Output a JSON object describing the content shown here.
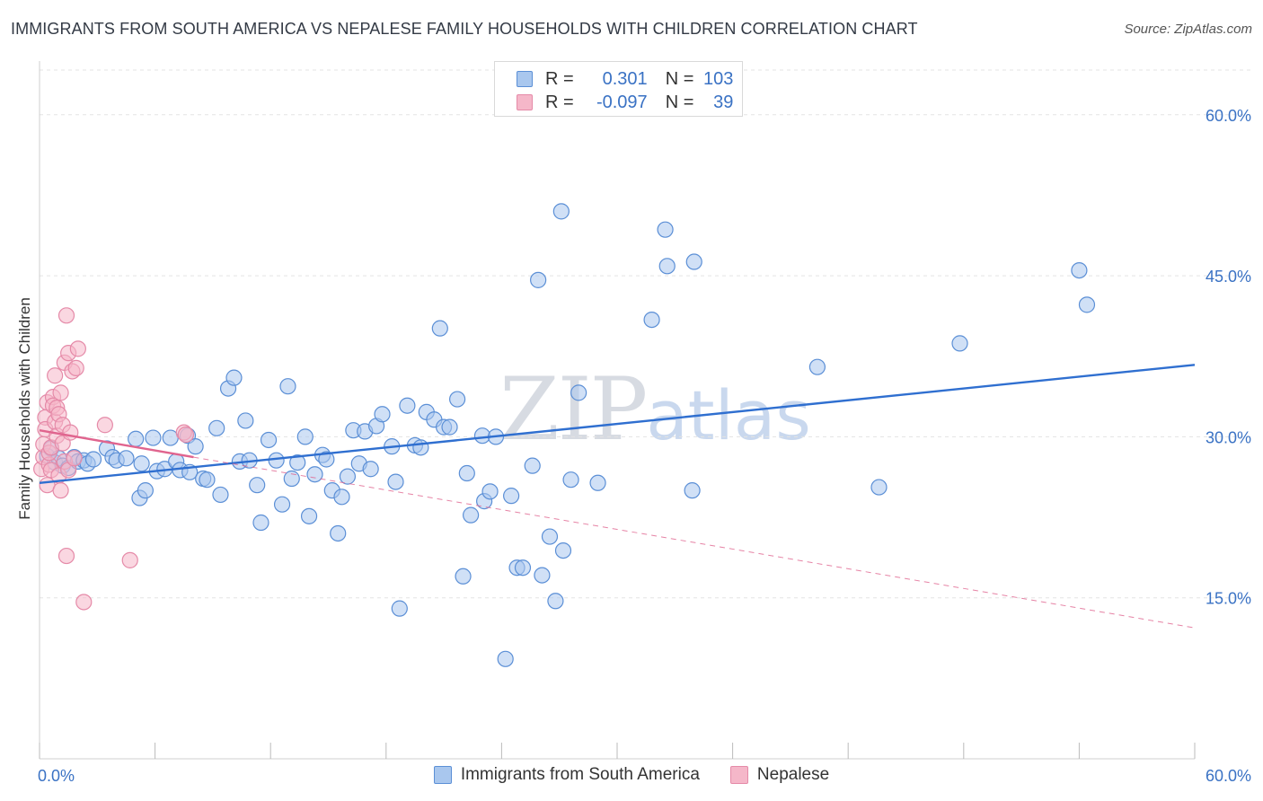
{
  "title": "IMMIGRANTS FROM SOUTH AMERICA VS NEPALESE FAMILY HOUSEHOLDS WITH CHILDREN CORRELATION CHART",
  "source": "Source: ZipAtlas.com",
  "watermark": {
    "zip": "ZIP",
    "atlas": "atlas"
  },
  "legend_top": {
    "rows": [
      {
        "r_label": "R =",
        "r_value": "0.301",
        "n_label": "N =",
        "n_value": "103"
      },
      {
        "r_label": "R =",
        "r_value": "-0.097",
        "n_label": "N =",
        "n_value": "39"
      }
    ]
  },
  "legend_bottom": {
    "series1": "Immigrants from South America",
    "series2": "Nepalese"
  },
  "colors": {
    "blue_fill": "#a9c7ee",
    "blue_stroke": "#5b8fd6",
    "blue_line": "#2f6fd0",
    "pink_fill": "#f5b7c9",
    "pink_stroke": "#e58aa8",
    "pink_line": "#e0648e",
    "axis_text": "#3a72c4",
    "grid": "#e3e3e3"
  },
  "chart_data": {
    "type": "scatter",
    "title": "IMMIGRANTS FROM SOUTH AMERICA VS NEPALESE FAMILY HOUSEHOLDS WITH CHILDREN CORRELATION CHART",
    "xlabel": "",
    "ylabel": "Family Households with Children",
    "xlim": [
      0,
      60
    ],
    "ylim": [
      0,
      65
    ],
    "x_tick_labels": [
      "0.0%",
      "60.0%"
    ],
    "y_ticks": [
      15,
      30,
      45,
      60
    ],
    "y_tick_labels": [
      "15.0%",
      "30.0%",
      "45.0%",
      "60.0%"
    ],
    "grid": true,
    "series": [
      {
        "name": "Immigrants from South America",
        "R": 0.301,
        "N": 103,
        "trend": {
          "x": [
            0,
            60
          ],
          "y": [
            25.7,
            36.7
          ],
          "style": "solid"
        },
        "points": [
          [
            0.4,
            28.2
          ],
          [
            0.6,
            28.9
          ],
          [
            0.8,
            27.6
          ],
          [
            1.0,
            28.0
          ],
          [
            1.2,
            27.3
          ],
          [
            1.5,
            27.1
          ],
          [
            1.8,
            28.1
          ],
          [
            2.0,
            27.7
          ],
          [
            2.3,
            27.8
          ],
          [
            2.5,
            27.5
          ],
          [
            2.8,
            27.9
          ],
          [
            3.5,
            28.9
          ],
          [
            3.8,
            28.1
          ],
          [
            4.0,
            27.8
          ],
          [
            4.5,
            28.0
          ],
          [
            5.0,
            29.8
          ],
          [
            5.2,
            24.3
          ],
          [
            5.3,
            27.5
          ],
          [
            5.5,
            25.0
          ],
          [
            5.9,
            29.9
          ],
          [
            6.1,
            26.8
          ],
          [
            6.5,
            27.0
          ],
          [
            6.8,
            29.9
          ],
          [
            7.1,
            27.7
          ],
          [
            7.3,
            26.9
          ],
          [
            7.7,
            30.1
          ],
          [
            7.8,
            26.7
          ],
          [
            8.1,
            29.1
          ],
          [
            8.5,
            26.1
          ],
          [
            8.7,
            26.0
          ],
          [
            9.2,
            30.8
          ],
          [
            9.4,
            24.6
          ],
          [
            9.8,
            34.5
          ],
          [
            10.1,
            35.5
          ],
          [
            10.4,
            27.7
          ],
          [
            10.7,
            31.5
          ],
          [
            10.9,
            27.8
          ],
          [
            11.3,
            25.5
          ],
          [
            11.5,
            22.0
          ],
          [
            11.9,
            29.7
          ],
          [
            12.3,
            27.8
          ],
          [
            12.6,
            23.7
          ],
          [
            12.9,
            34.7
          ],
          [
            13.1,
            26.1
          ],
          [
            13.4,
            27.6
          ],
          [
            13.8,
            30.0
          ],
          [
            14.0,
            22.6
          ],
          [
            14.3,
            26.5
          ],
          [
            14.7,
            28.3
          ],
          [
            14.9,
            27.9
          ],
          [
            15.2,
            25.0
          ],
          [
            15.5,
            21.0
          ],
          [
            15.7,
            24.4
          ],
          [
            16.0,
            26.3
          ],
          [
            16.3,
            30.6
          ],
          [
            16.6,
            27.5
          ],
          [
            16.9,
            30.5
          ],
          [
            17.2,
            27.0
          ],
          [
            17.5,
            31.0
          ],
          [
            17.8,
            32.1
          ],
          [
            18.3,
            29.1
          ],
          [
            18.5,
            25.8
          ],
          [
            18.7,
            14.0
          ],
          [
            19.1,
            32.9
          ],
          [
            19.5,
            29.2
          ],
          [
            19.8,
            29.0
          ],
          [
            20.1,
            32.3
          ],
          [
            20.5,
            31.6
          ],
          [
            20.8,
            40.1
          ],
          [
            21.0,
            30.9
          ],
          [
            21.3,
            30.9
          ],
          [
            21.7,
            33.5
          ],
          [
            22.0,
            17.0
          ],
          [
            22.2,
            26.6
          ],
          [
            22.4,
            22.7
          ],
          [
            23.0,
            30.1
          ],
          [
            23.1,
            24.0
          ],
          [
            23.4,
            24.9
          ],
          [
            23.7,
            30.0
          ],
          [
            24.2,
            9.3
          ],
          [
            24.5,
            24.5
          ],
          [
            24.8,
            17.8
          ],
          [
            25.1,
            17.8
          ],
          [
            25.6,
            27.3
          ],
          [
            25.9,
            44.6
          ],
          [
            26.1,
            17.1
          ],
          [
            26.5,
            20.7
          ],
          [
            26.8,
            14.7
          ],
          [
            27.1,
            51.0
          ],
          [
            27.2,
            19.4
          ],
          [
            27.6,
            26.0
          ],
          [
            28.0,
            34.1
          ],
          [
            29.0,
            25.7
          ],
          [
            31.8,
            40.9
          ],
          [
            32.5,
            49.3
          ],
          [
            32.6,
            45.9
          ],
          [
            33.9,
            25.0
          ],
          [
            34.0,
            46.3
          ],
          [
            40.4,
            36.5
          ],
          [
            43.6,
            25.3
          ],
          [
            47.8,
            38.7
          ],
          [
            54.0,
            45.5
          ],
          [
            54.4,
            42.3
          ]
        ]
      },
      {
        "name": "Nepalese",
        "R": -0.097,
        "N": 39,
        "trend": {
          "x": [
            0,
            8
          ],
          "y": [
            30.6,
            28.1
          ],
          "x_dashed": [
            8,
            60
          ],
          "y_dashed": [
            28.1,
            12.2
          ],
          "style": "solid-then-dashed"
        },
        "points": [
          [
            0.1,
            27.0
          ],
          [
            0.2,
            28.1
          ],
          [
            0.2,
            29.3
          ],
          [
            0.3,
            31.8
          ],
          [
            0.3,
            30.7
          ],
          [
            0.4,
            33.2
          ],
          [
            0.4,
            25.5
          ],
          [
            0.5,
            27.4
          ],
          [
            0.5,
            28.5
          ],
          [
            0.6,
            29.0
          ],
          [
            0.6,
            26.9
          ],
          [
            0.7,
            33.7
          ],
          [
            0.7,
            32.9
          ],
          [
            0.8,
            35.7
          ],
          [
            0.8,
            31.4
          ],
          [
            0.9,
            30.1
          ],
          [
            0.9,
            32.7
          ],
          [
            1.0,
            32.1
          ],
          [
            1.0,
            26.4
          ],
          [
            1.1,
            25.0
          ],
          [
            1.1,
            34.1
          ],
          [
            1.2,
            29.4
          ],
          [
            1.2,
            31.1
          ],
          [
            1.3,
            36.9
          ],
          [
            1.3,
            27.7
          ],
          [
            1.4,
            41.3
          ],
          [
            1.4,
            18.9
          ],
          [
            1.5,
            37.8
          ],
          [
            1.5,
            26.9
          ],
          [
            1.6,
            30.4
          ],
          [
            1.7,
            36.1
          ],
          [
            1.8,
            28.0
          ],
          [
            1.9,
            36.4
          ],
          [
            2.0,
            38.2
          ],
          [
            2.3,
            14.6
          ],
          [
            3.4,
            31.1
          ],
          [
            4.7,
            18.5
          ],
          [
            7.5,
            30.4
          ],
          [
            7.6,
            30.2
          ]
        ]
      }
    ]
  }
}
